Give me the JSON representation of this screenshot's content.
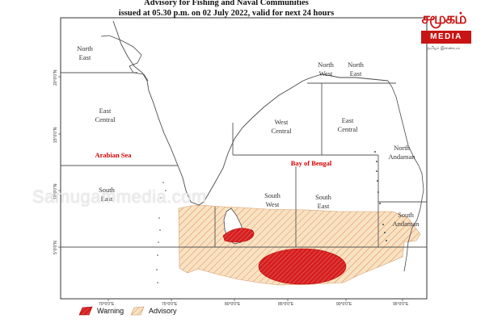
{
  "title_line1": "Advisory for Fishing and Naval Communities",
  "title_line2": "issued at 05.30 p.m. on 02 July  2022, valid for next 24 hours",
  "regions": {
    "north_east": [
      "North",
      "East"
    ],
    "east_central_w": [
      "East",
      "Central"
    ],
    "south_east_w": [
      "South",
      "East"
    ],
    "north_west_b": [
      "North",
      "West"
    ],
    "north_east_b": [
      "North",
      "East"
    ],
    "west_central_b": [
      "West",
      "Central"
    ],
    "east_central_b": [
      "East",
      "Central"
    ],
    "north_andaman": [
      "North",
      "Andaman"
    ],
    "south_west_b": [
      "South",
      "West"
    ],
    "south_east_b": [
      "South",
      "East"
    ],
    "south_andaman": [
      "South",
      "Andaman"
    ]
  },
  "seas": {
    "arabian_sea": "Arabian Sea",
    "bay_of_bengal": "Bay of Bengal"
  },
  "longitude_ticks": [
    "70°0'0\"E",
    "75°0'0\"E",
    "80°0'0\"E",
    "85°0'0\"E",
    "90°0'0\"E",
    "95°0'0\"E"
  ],
  "latitude_ticks": [
    "20°0'0\"N",
    "15°0'0\"N",
    "10°0'0\"N",
    "5°0'0\"N"
  ],
  "legend": {
    "warning": "Warning",
    "advisory": "Advisory"
  },
  "colors": {
    "warning_fill": "#d61e1e",
    "advisory_fill": "#f8e2c4",
    "advisory_hatch": "#e38b48",
    "coast": "#4a4a4a",
    "boundary": "#555555"
  },
  "logo": {
    "name": "சமூகம்",
    "media": "MEDIA",
    "tagline": "தமிழர் இணையம்"
  },
  "watermark": "Samugammedia.com"
}
